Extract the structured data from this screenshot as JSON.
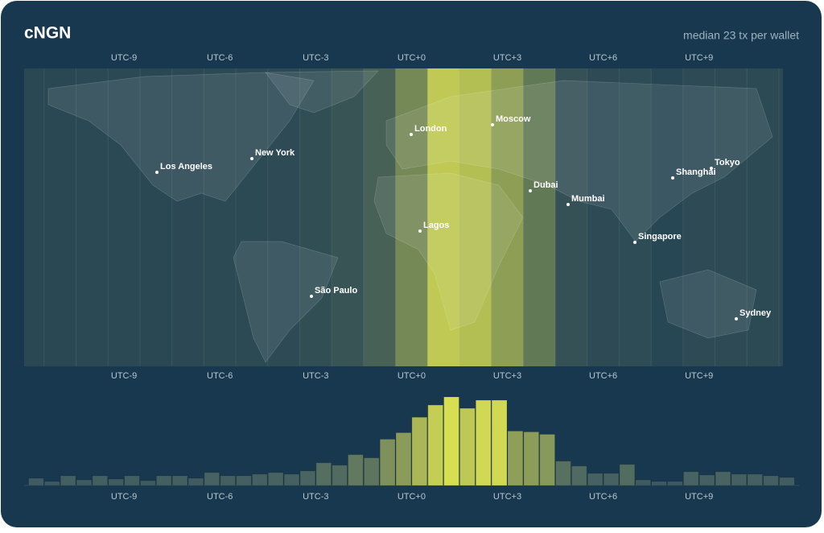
{
  "header": {
    "title": "cNGN",
    "subtitle": "median 23 tx per wallet"
  },
  "utc_ticks": [
    {
      "value": -9,
      "label": "UTC-9"
    },
    {
      "value": -6,
      "label": "UTC-6"
    },
    {
      "value": -3,
      "label": "UTC-3"
    },
    {
      "value": 0,
      "label": "UTC+0"
    },
    {
      "value": 3,
      "label": "UTC+3"
    },
    {
      "value": 6,
      "label": "UTC+6"
    },
    {
      "value": 9,
      "label": "UTC+9"
    }
  ],
  "cities": [
    "London",
    "Moscow",
    "New York",
    "Los Angeles",
    "Dubai",
    "Mumbai",
    "Shanghai",
    "Tokyo",
    "Lagos",
    "Singapore",
    "São Paulo",
    "Sydney"
  ],
  "histogram": {
    "color_low": "#3a5763",
    "color_high": "#d8de52",
    "values": [
      9,
      5,
      12,
      7,
      12,
      8,
      12,
      6,
      12,
      12,
      9,
      16,
      12,
      12,
      14,
      16,
      14,
      18,
      28,
      25,
      38,
      34,
      57,
      65,
      84,
      99,
      109,
      95,
      105,
      105,
      67,
      66,
      63,
      30,
      24,
      15,
      15,
      26,
      7,
      5,
      5,
      17,
      13,
      17,
      14,
      14,
      12,
      10
    ]
  }
}
